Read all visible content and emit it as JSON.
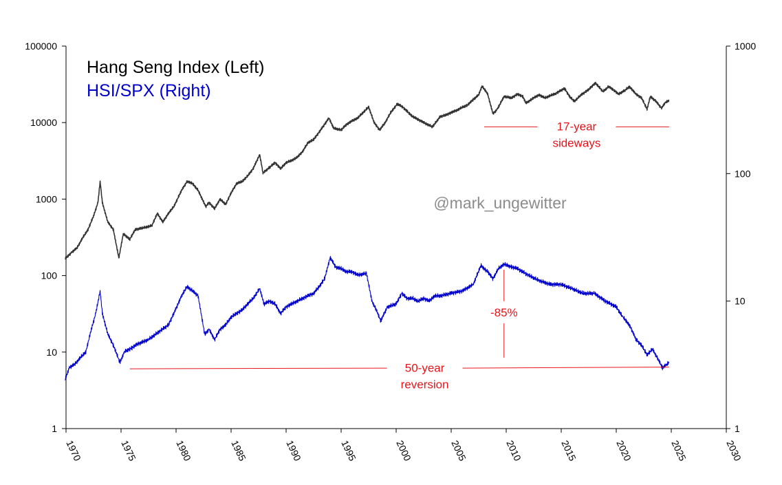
{
  "chart_data": {
    "type": "line",
    "title": "",
    "xlabel": "",
    "x_ticks": [
      "1970",
      "1975",
      "1980",
      "1985",
      "1990",
      "1995",
      "2000",
      "2005",
      "2010",
      "2015",
      "2020",
      "2025",
      "2030"
    ],
    "xlim": [
      1970,
      2030
    ],
    "left_axis": {
      "scale": "log",
      "ylim": [
        1,
        100000
      ],
      "ticks": [
        "1",
        "10",
        "100",
        "1000",
        "10000",
        "100000"
      ]
    },
    "right_axis": {
      "scale": "log",
      "ylim": [
        1,
        1000
      ],
      "ticks": [
        "1",
        "10",
        "100",
        "1000"
      ]
    },
    "legend_placement": "top-left",
    "grid": false,
    "series": [
      {
        "name": "Hang Seng Index (Left)",
        "axis": "left",
        "color": "#333333",
        "points": [
          [
            1969.9,
            165
          ],
          [
            1970.5,
            200
          ],
          [
            1971.0,
            230
          ],
          [
            1971.5,
            310
          ],
          [
            1972.0,
            400
          ],
          [
            1972.5,
            600
          ],
          [
            1972.9,
            900
          ],
          [
            1973.1,
            1700
          ],
          [
            1973.3,
            900
          ],
          [
            1973.8,
            500
          ],
          [
            1974.3,
            400
          ],
          [
            1974.8,
            170
          ],
          [
            1975.2,
            350
          ],
          [
            1975.8,
            300
          ],
          [
            1976.3,
            400
          ],
          [
            1977.0,
            420
          ],
          [
            1977.8,
            450
          ],
          [
            1978.3,
            650
          ],
          [
            1978.8,
            500
          ],
          [
            1979.3,
            650
          ],
          [
            1979.8,
            800
          ],
          [
            1980.5,
            1300
          ],
          [
            1981.0,
            1700
          ],
          [
            1981.5,
            1600
          ],
          [
            1982.0,
            1300
          ],
          [
            1982.7,
            800
          ],
          [
            1983.0,
            900
          ],
          [
            1983.5,
            750
          ],
          [
            1984.0,
            1000
          ],
          [
            1984.5,
            850
          ],
          [
            1985.0,
            1200
          ],
          [
            1985.5,
            1600
          ],
          [
            1986.0,
            1700
          ],
          [
            1986.5,
            2000
          ],
          [
            1987.0,
            2500
          ],
          [
            1987.6,
            3800
          ],
          [
            1987.9,
            2200
          ],
          [
            1988.5,
            2600
          ],
          [
            1989.0,
            3000
          ],
          [
            1989.5,
            2500
          ],
          [
            1990.0,
            3000
          ],
          [
            1990.5,
            3200
          ],
          [
            1991.0,
            3500
          ],
          [
            1991.5,
            4200
          ],
          [
            1992.0,
            5500
          ],
          [
            1992.5,
            6000
          ],
          [
            1993.0,
            7500
          ],
          [
            1993.9,
            11500
          ],
          [
            1994.3,
            8500
          ],
          [
            1995.0,
            8000
          ],
          [
            1995.5,
            9500
          ],
          [
            1996.0,
            10500
          ],
          [
            1996.5,
            11500
          ],
          [
            1997.5,
            16000
          ],
          [
            1998.0,
            10000
          ],
          [
            1998.5,
            8000
          ],
          [
            1999.0,
            10000
          ],
          [
            1999.5,
            13500
          ],
          [
            2000.1,
            17500
          ],
          [
            2000.6,
            16000
          ],
          [
            2001.0,
            14000
          ],
          [
            2001.5,
            12000
          ],
          [
            2002.0,
            11000
          ],
          [
            2002.5,
            10000
          ],
          [
            2003.3,
            8800
          ],
          [
            2004.0,
            12000
          ],
          [
            2004.5,
            12500
          ],
          [
            2005.0,
            13500
          ],
          [
            2005.5,
            14500
          ],
          [
            2006.0,
            15800
          ],
          [
            2006.5,
            17000
          ],
          [
            2007.0,
            20000
          ],
          [
            2007.5,
            23000
          ],
          [
            2007.8,
            30000
          ],
          [
            2008.3,
            24000
          ],
          [
            2008.8,
            13000
          ],
          [
            2009.2,
            15000
          ],
          [
            2009.8,
            22000
          ],
          [
            2010.5,
            21000
          ],
          [
            2011.0,
            23500
          ],
          [
            2011.5,
            22000
          ],
          [
            2011.8,
            18000
          ],
          [
            2012.5,
            21000
          ],
          [
            2013.0,
            23000
          ],
          [
            2013.5,
            21000
          ],
          [
            2014.0,
            22500
          ],
          [
            2014.5,
            24000
          ],
          [
            2015.3,
            28000
          ],
          [
            2015.8,
            21500
          ],
          [
            2016.2,
            19000
          ],
          [
            2016.8,
            23000
          ],
          [
            2017.5,
            27000
          ],
          [
            2018.1,
            33000
          ],
          [
            2018.8,
            25500
          ],
          [
            2019.3,
            29500
          ],
          [
            2019.8,
            26500
          ],
          [
            2020.2,
            23500
          ],
          [
            2020.8,
            26500
          ],
          [
            2021.2,
            29500
          ],
          [
            2021.8,
            23500
          ],
          [
            2022.3,
            21000
          ],
          [
            2022.8,
            15000
          ],
          [
            2023.1,
            22000
          ],
          [
            2023.6,
            19000
          ],
          [
            2024.1,
            15500
          ],
          [
            2024.5,
            18500
          ],
          [
            2024.8,
            19500
          ]
        ]
      },
      {
        "name": "HSI/SPX (Right)",
        "axis": "right",
        "color": "#0000cc",
        "points": [
          [
            1969.9,
            2.4
          ],
          [
            1970.3,
            3.0
          ],
          [
            1970.8,
            3.2
          ],
          [
            1971.3,
            3.6
          ],
          [
            1971.8,
            4.0
          ],
          [
            1972.3,
            6.0
          ],
          [
            1972.7,
            8.0
          ],
          [
            1973.1,
            12.0
          ],
          [
            1973.3,
            8.0
          ],
          [
            1973.8,
            5.5
          ],
          [
            1974.3,
            4.5
          ],
          [
            1974.9,
            3.3
          ],
          [
            1975.3,
            4.0
          ],
          [
            1976.0,
            4.3
          ],
          [
            1976.5,
            4.6
          ],
          [
            1977.5,
            5.0
          ],
          [
            1978.5,
            5.8
          ],
          [
            1979.3,
            6.5
          ],
          [
            1979.8,
            8.0
          ],
          [
            1980.5,
            11.0
          ],
          [
            1981.0,
            13.0
          ],
          [
            1981.5,
            12.0
          ],
          [
            1982.0,
            11.0
          ],
          [
            1982.6,
            5.5
          ],
          [
            1983.0,
            6.0
          ],
          [
            1983.5,
            5.0
          ],
          [
            1984.0,
            6.0
          ],
          [
            1984.5,
            6.5
          ],
          [
            1985.0,
            7.5
          ],
          [
            1985.5,
            8.0
          ],
          [
            1986.0,
            8.5
          ],
          [
            1986.5,
            9.5
          ],
          [
            1987.0,
            10.5
          ],
          [
            1987.6,
            12.5
          ],
          [
            1988.0,
            9.5
          ],
          [
            1988.5,
            10.0
          ],
          [
            1989.0,
            9.5
          ],
          [
            1989.5,
            8.0
          ],
          [
            1990.0,
            9.0
          ],
          [
            1990.5,
            9.5
          ],
          [
            1991.0,
            10.0
          ],
          [
            1991.5,
            10.5
          ],
          [
            1992.0,
            11.0
          ],
          [
            1992.5,
            11.5
          ],
          [
            1993.0,
            13.0
          ],
          [
            1993.5,
            15.0
          ],
          [
            1994.0,
            22.0
          ],
          [
            1994.5,
            18.5
          ],
          [
            1995.0,
            18.0
          ],
          [
            1995.5,
            17.0
          ],
          [
            1996.0,
            17.0
          ],
          [
            1996.5,
            16.0
          ],
          [
            1997.3,
            16.5
          ],
          [
            1997.8,
            10.0
          ],
          [
            1998.2,
            8.5
          ],
          [
            1998.6,
            7.0
          ],
          [
            1999.2,
            9.0
          ],
          [
            2000.0,
            9.5
          ],
          [
            2000.5,
            11.5
          ],
          [
            2001.0,
            10.5
          ],
          [
            2001.5,
            10.5
          ],
          [
            2002.0,
            10.0
          ],
          [
            2002.5,
            10.5
          ],
          [
            2003.0,
            10.0
          ],
          [
            2003.5,
            11.0
          ],
          [
            2004.0,
            11.0
          ],
          [
            2005.0,
            11.5
          ],
          [
            2006.0,
            12.0
          ],
          [
            2007.0,
            13.5
          ],
          [
            2007.7,
            19.0
          ],
          [
            2008.3,
            17.0
          ],
          [
            2008.8,
            15.0
          ],
          [
            2009.3,
            18.0
          ],
          [
            2009.8,
            19.5
          ],
          [
            2010.5,
            18.5
          ],
          [
            2011.0,
            18.0
          ],
          [
            2012.0,
            16.0
          ],
          [
            2013.0,
            14.5
          ],
          [
            2014.0,
            13.5
          ],
          [
            2015.0,
            13.5
          ],
          [
            2016.0,
            12.5
          ],
          [
            2017.0,
            11.5
          ],
          [
            2018.0,
            11.5
          ],
          [
            2019.0,
            10.0
          ],
          [
            2020.0,
            9.0
          ],
          [
            2020.6,
            7.5
          ],
          [
            2021.2,
            6.5
          ],
          [
            2021.8,
            5.0
          ],
          [
            2022.3,
            4.5
          ],
          [
            2022.8,
            3.8
          ],
          [
            2023.3,
            4.2
          ],
          [
            2023.8,
            3.5
          ],
          [
            2024.2,
            3.0
          ],
          [
            2024.6,
            3.2
          ],
          [
            2024.8,
            3.3
          ]
        ]
      }
    ],
    "annotations": {
      "sideways_line1": "17-year",
      "sideways_line2": "sideways",
      "drawdown": "-85%",
      "reversion_line1": "50-year",
      "reversion_line2": "reversion",
      "watermark": "@mark_ungewitter"
    },
    "reference_levels": {
      "sideways_x": [
        2008,
        2024.8
      ],
      "sideways_y_left": 8800,
      "reversion_x": [
        1975.8,
        2024.8
      ],
      "reversion_y_right": 3.0,
      "drawdown_x": 2009.8,
      "drawdown_y_right": [
        19.5,
        3.3
      ]
    },
    "colors": {
      "annotation": "#e8141b",
      "watermark": "#8c8c8c",
      "axis": "#000000"
    }
  }
}
